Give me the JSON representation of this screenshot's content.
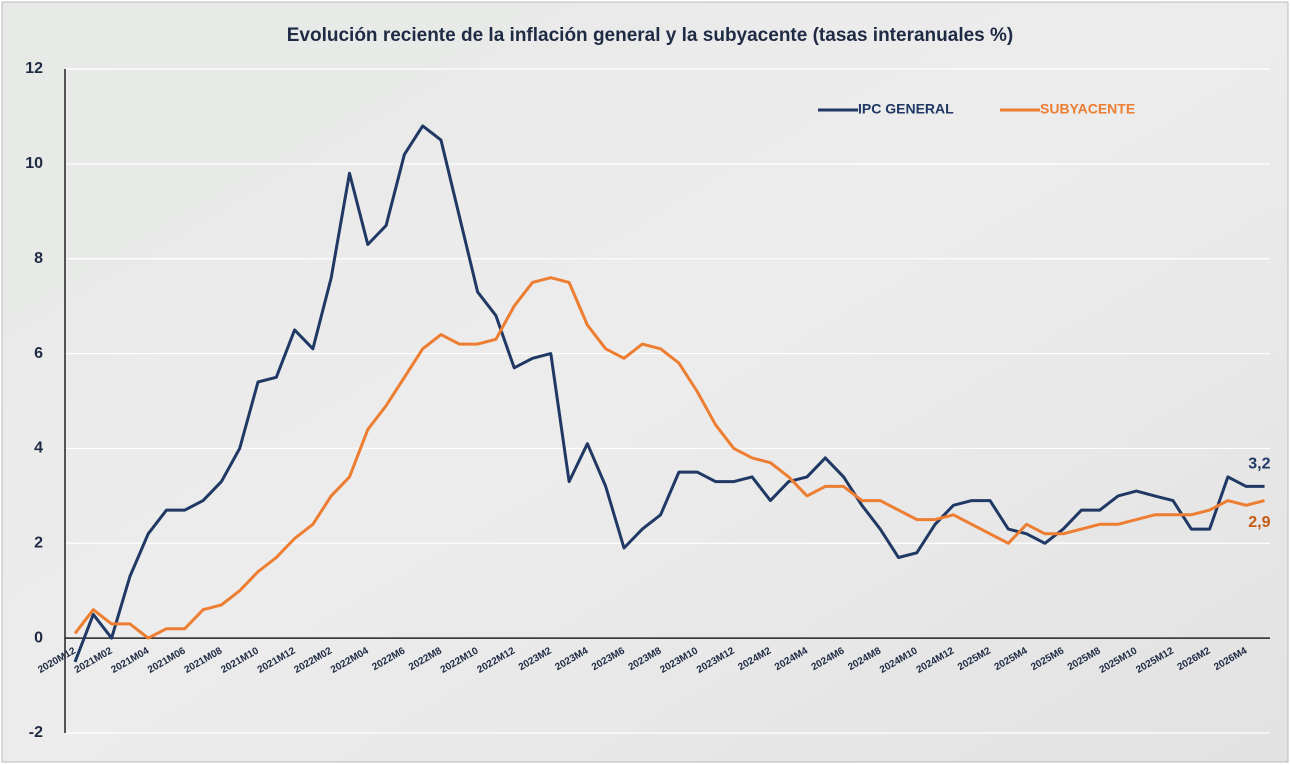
{
  "chart_data": {
    "type": "line",
    "title": "Evolución reciente de la inflación general y la subyacente (tasas interanuales %)",
    "categories": [
      "2020M12",
      null,
      "2021M02",
      null,
      "2021M04",
      null,
      "2021M06",
      null,
      "2021M08",
      null,
      "2021M10",
      null,
      "2021M12",
      null,
      "2022M02",
      null,
      "2022M04",
      null,
      "2022M6",
      null,
      "2022M8",
      null,
      "2022M10",
      null,
      "2022M12",
      null,
      "2023M2",
      null,
      "2023M4",
      null,
      "2023M6",
      null,
      "2023M8",
      null,
      "2023M10",
      null,
      "2023M12",
      null,
      "2024M2",
      null,
      "2024M4",
      null,
      "2024M6",
      null,
      "2024M8",
      null,
      "2024M10",
      null,
      "2024M12",
      null,
      "2025M2",
      null,
      "2025M4",
      null,
      "2025M6",
      null,
      "2025M8",
      null,
      "2025M10",
      null,
      "2025M12",
      null,
      "2026M2",
      null,
      "2026M4",
      null
    ],
    "series": [
      {
        "name": "IPC GENERAL",
        "color": "#1f3864",
        "values": [
          -0.5,
          0.5,
          0.0,
          1.3,
          2.2,
          2.7,
          2.7,
          2.9,
          3.3,
          4.0,
          5.4,
          5.5,
          6.5,
          6.1,
          7.6,
          9.8,
          8.3,
          8.7,
          10.2,
          10.8,
          10.5,
          8.9,
          7.3,
          6.8,
          5.7,
          5.9,
          6.0,
          3.3,
          4.1,
          3.2,
          1.9,
          2.3,
          2.6,
          3.5,
          3.5,
          3.3,
          3.3,
          3.4,
          2.9,
          3.3,
          3.4,
          3.8,
          3.4,
          2.8,
          2.3,
          1.7,
          1.8,
          2.4,
          2.8,
          2.9,
          2.9,
          2.3,
          2.2,
          2.0,
          2.3,
          2.7,
          2.7,
          3.0,
          3.1,
          3.0,
          2.9,
          2.3,
          2.3,
          3.4,
          3.2,
          3.2
        ],
        "value_labels": [
          null,
          null,
          null,
          null,
          null,
          null,
          null,
          null,
          null,
          null,
          null,
          null,
          null,
          null,
          null,
          null,
          null,
          null,
          null,
          null,
          null,
          null,
          null,
          null,
          null,
          null,
          null,
          null,
          null,
          null,
          null,
          null,
          null,
          null,
          null,
          null,
          null,
          null,
          null,
          null,
          null,
          null,
          null,
          null,
          null,
          null,
          null,
          null,
          null,
          null,
          null,
          null,
          null,
          null,
          null,
          null,
          null,
          null,
          null,
          null,
          null,
          null,
          null,
          null,
          null,
          "3,2"
        ]
      },
      {
        "name": "SUBYACENTE",
        "color": "#ed7d31",
        "values": [
          0.1,
          0.6,
          0.3,
          0.3,
          0.0,
          0.2,
          0.2,
          0.6,
          0.7,
          1.0,
          1.4,
          1.7,
          2.1,
          2.4,
          3.0,
          3.4,
          4.4,
          4.9,
          5.5,
          6.1,
          6.4,
          6.2,
          6.2,
          6.3,
          7.0,
          7.5,
          7.6,
          7.5,
          6.6,
          6.1,
          5.9,
          6.2,
          6.1,
          5.8,
          5.2,
          4.5,
          4.0,
          3.8,
          3.7,
          3.4,
          3.0,
          3.2,
          3.2,
          2.9,
          2.9,
          2.7,
          2.5,
          2.5,
          2.6,
          2.4,
          2.2,
          2.0,
          2.4,
          2.2,
          2.2,
          2.3,
          2.4,
          2.4,
          2.5,
          2.6,
          2.6,
          2.6,
          2.7,
          2.9,
          2.8,
          2.9
        ],
        "value_labels": [
          null,
          null,
          null,
          null,
          null,
          null,
          null,
          null,
          null,
          null,
          null,
          null,
          null,
          null,
          null,
          null,
          null,
          null,
          null,
          null,
          null,
          null,
          null,
          null,
          null,
          null,
          null,
          null,
          null,
          null,
          null,
          null,
          null,
          null,
          null,
          null,
          null,
          null,
          null,
          null,
          null,
          null,
          null,
          null,
          null,
          null,
          null,
          null,
          null,
          null,
          null,
          null,
          null,
          null,
          null,
          null,
          null,
          null,
          null,
          null,
          null,
          null,
          null,
          null,
          null,
          "2,9"
        ]
      }
    ],
    "ylim": [
      -2,
      12
    ],
    "yticks": [
      -2,
      0,
      2,
      4,
      6,
      8,
      10,
      12
    ],
    "grid": true,
    "legend": "top-right"
  }
}
